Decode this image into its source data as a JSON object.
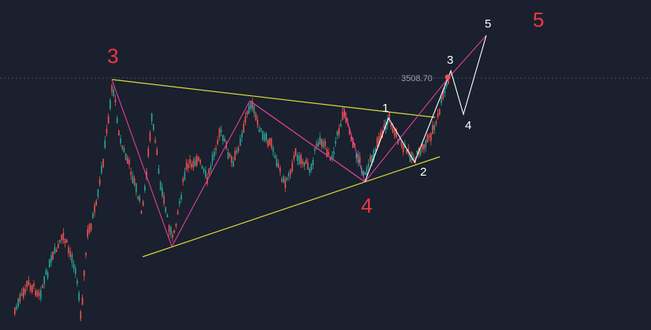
{
  "chart_data": {
    "type": "candlestick",
    "price_line": {
      "label": "3508.70",
      "value": 3508.7
    },
    "colors": {
      "background": "#1a202d",
      "up": "#26a69a",
      "down": "#ef5350",
      "triangle_lines": "#d9d93a",
      "wave_lines": "#e03f9e",
      "projection_lines": "#ffffff",
      "price_line": "#4a5163"
    },
    "major_wave_labels": [
      "3",
      "4",
      "5"
    ],
    "minor_wave_labels": [
      "1",
      "2",
      "3",
      "4",
      "5"
    ]
  }
}
